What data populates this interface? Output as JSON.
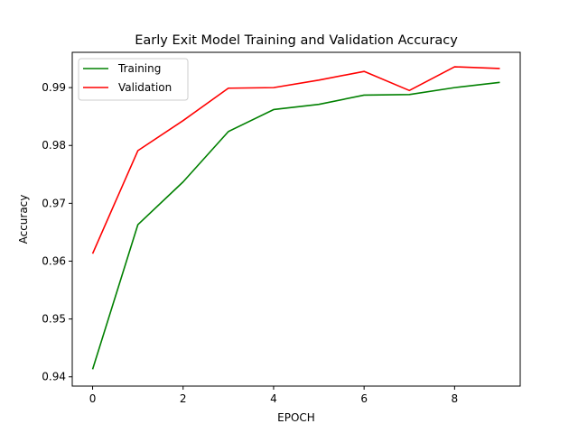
{
  "chart_data": {
    "type": "line",
    "title": "Early Exit Model Training and Validation Accuracy",
    "xlabel": "EPOCH",
    "ylabel": "Accuracy",
    "x": [
      0,
      1,
      2,
      3,
      4,
      5,
      6,
      7,
      8,
      9
    ],
    "xlim": [
      -0.45,
      9.45
    ],
    "ylim": [
      0.9384,
      0.9961
    ],
    "xticks": [
      0,
      2,
      4,
      6,
      8
    ],
    "yticks": [
      0.94,
      0.95,
      0.96,
      0.97,
      0.98,
      0.99
    ],
    "xtick_labels": [
      "0",
      "2",
      "4",
      "6",
      "8"
    ],
    "ytick_labels": [
      "0.94",
      "0.95",
      "0.96",
      "0.97",
      "0.98",
      "0.99"
    ],
    "grid": false,
    "legend_position": "top-left",
    "series": [
      {
        "name": "Training",
        "color": "#008000",
        "values": [
          0.9413,
          0.9663,
          0.9737,
          0.9824,
          0.9862,
          0.9871,
          0.9887,
          0.9888,
          0.99,
          0.9909
        ]
      },
      {
        "name": "Validation",
        "color": "#ff0000",
        "values": [
          0.9613,
          0.9791,
          0.9843,
          0.9899,
          0.99,
          0.9913,
          0.9928,
          0.9895,
          0.9936,
          0.9933
        ]
      }
    ]
  }
}
